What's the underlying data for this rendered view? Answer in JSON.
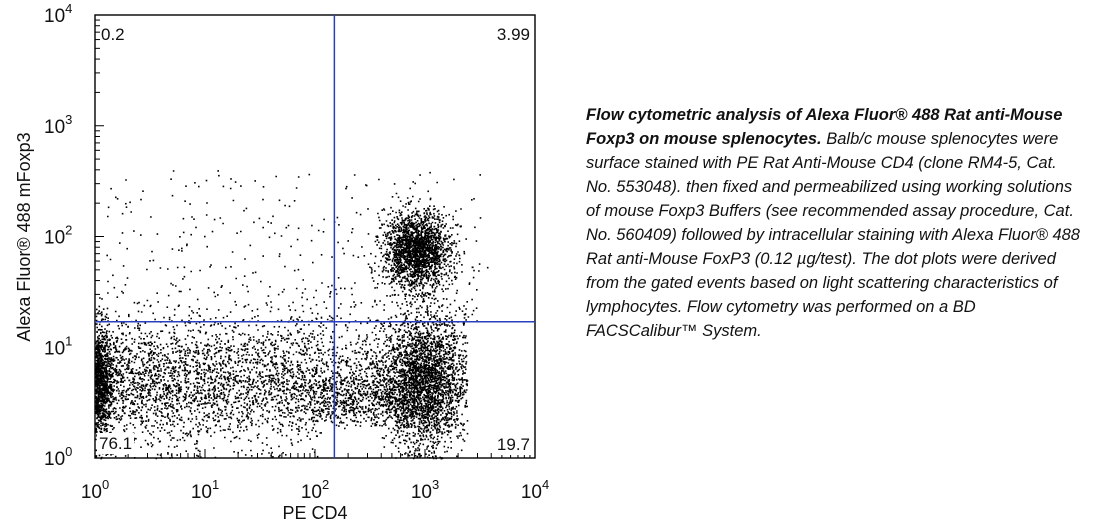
{
  "chart_data": {
    "type": "scatter",
    "xlabel": "PE CD4",
    "ylabel": "Alexa Fluor® 488 mFoxp3",
    "xscale": "log",
    "yscale": "log",
    "xlim": [
      1,
      10000
    ],
    "ylim": [
      1,
      10000
    ],
    "x_ticks": [
      {
        "base": "10",
        "exp": "0"
      },
      {
        "base": "10",
        "exp": "1"
      },
      {
        "base": "10",
        "exp": "2"
      },
      {
        "base": "10",
        "exp": "3"
      },
      {
        "base": "10",
        "exp": "4"
      }
    ],
    "y_ticks": [
      {
        "base": "10",
        "exp": "0"
      },
      {
        "base": "10",
        "exp": "1"
      },
      {
        "base": "10",
        "exp": "2"
      },
      {
        "base": "10",
        "exp": "3"
      },
      {
        "base": "10",
        "exp": "4"
      }
    ],
    "quadrant_gate": {
      "x": 150,
      "y": 17,
      "color": "#2a3fbf"
    },
    "quadrants": {
      "top_left": "0.2",
      "top_right": "3.99",
      "bottom_left": "76.1",
      "bottom_right": "19.7"
    },
    "populations": [
      {
        "label": "76.1",
        "x_range": [
          1,
          100
        ],
        "y_center": 5,
        "weight": 0.62
      },
      {
        "label": "19.7",
        "x_center": 1000,
        "y_center": 5,
        "weight": 0.24
      },
      {
        "label": "3.99",
        "x_center": 900,
        "y_center": 80,
        "weight": 0.1
      }
    ],
    "grid": false,
    "dot_color": "#000000"
  },
  "caption": {
    "bold": "Flow cytometric analysis of Alexa Fluor® 488 Rat anti-Mouse Foxp3 on mouse splenocytes.",
    "text": "Balb/c mouse splenocytes were surface stained with PE Rat Anti-Mouse CD4 (clone RM4-5, Cat. No. 553048). then fixed and permeabilized using working solutions of mouse Foxp3 Buffers (see recommended assay procedure, Cat. No. 560409) followed by intracellular staining with Alexa Fluor® 488 Rat anti-Mouse FoxP3 (0.12 µg/test). The dot plots were derived from the gated events based on light scattering characteristics of lymphocytes. Flow cytometry was performed on a BD FACSCalibur™ System."
  }
}
